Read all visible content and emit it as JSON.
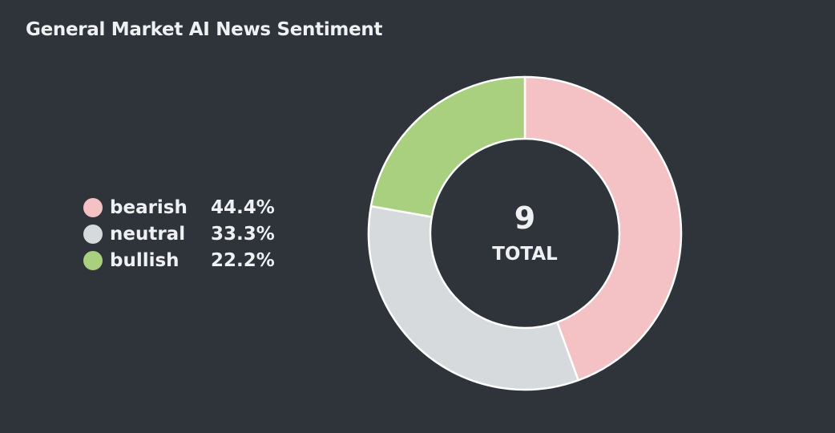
{
  "chart_data": {
    "type": "pie",
    "title": "General Market AI News Sentiment",
    "categories": [
      "bearish",
      "neutral",
      "bullish"
    ],
    "values": [
      4,
      3,
      2
    ],
    "percent_labels": [
      "44.4%",
      "33.3%",
      "22.2%"
    ],
    "colors": [
      "#f4c2c4",
      "#d7dadc",
      "#a8d07e"
    ],
    "total": "9",
    "total_label": "TOTAL",
    "legend_position": "left"
  }
}
